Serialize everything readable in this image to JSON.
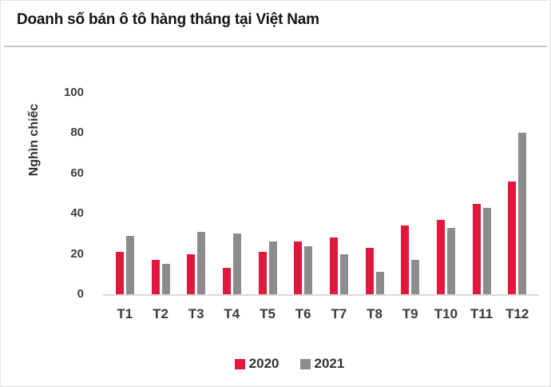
{
  "chart_data": {
    "type": "bar",
    "title": "Doanh số bán ô tô hàng tháng tại Việt Nam",
    "ylabel": "Nghìn chiếc",
    "xlabel": "",
    "categories": [
      "T1",
      "T2",
      "T3",
      "T4",
      "T5",
      "T6",
      "T7",
      "T8",
      "T9",
      "T10",
      "T11",
      "T12"
    ],
    "series": [
      {
        "name": "2020",
        "color": "#e1173c",
        "values": [
          21,
          17,
          20,
          13,
          21,
          26,
          28,
          23,
          34,
          37,
          45,
          56
        ]
      },
      {
        "name": "2021",
        "color": "#8c8c8c",
        "values": [
          29,
          15,
          31,
          30,
          26,
          24,
          20,
          11,
          17,
          33,
          43,
          80
        ]
      }
    ],
    "ylim": [
      0,
      100
    ],
    "yticks": [
      0,
      20,
      40,
      60,
      80,
      100
    ],
    "grid": false,
    "legend_position": "bottom",
    "legend_labels": [
      "2020",
      "2021"
    ]
  }
}
